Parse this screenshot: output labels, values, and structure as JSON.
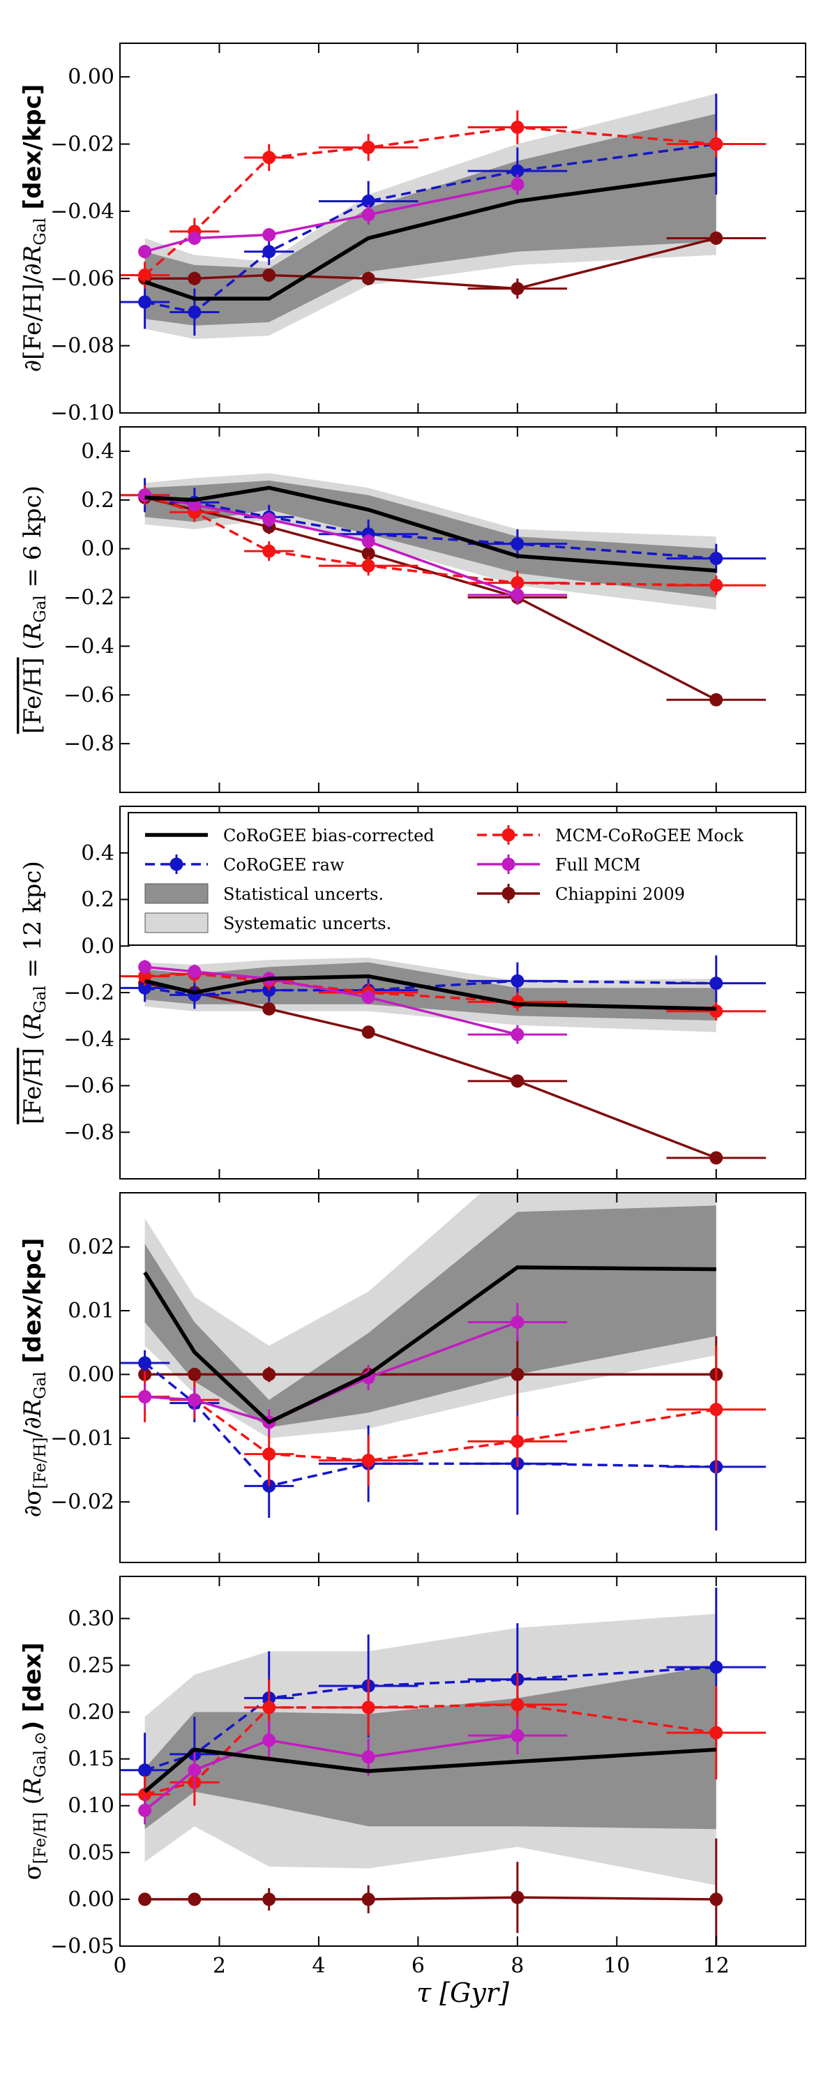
{
  "colors": {
    "corrected": "#000000",
    "raw": "#1515c8",
    "mock": "#f41414",
    "mcm": "#c21bc2",
    "chiappini": "#7f0c0c",
    "stat_band": "#8f8f8f",
    "sys_band": "#d8d8d8"
  },
  "legend": {
    "corrected": "CoRoGEE bias-corrected",
    "raw": "CoRoGEE raw",
    "stat": "Statistical uncerts.",
    "sys": "Systematic uncerts.",
    "mock": "MCM-CoRoGEE Mock",
    "mcm": "Full MCM",
    "chiappini": "Chiappini 2009"
  },
  "xaxis": {
    "label": "τ [Gyr]",
    "range": [
      0,
      13.8
    ],
    "ticks": [
      0,
      2,
      4,
      6,
      8,
      10,
      12
    ],
    "tick_labels": [
      "0",
      "2",
      "4",
      "6",
      "8",
      "10",
      "12"
    ]
  },
  "chart_data": [
    {
      "type": "line",
      "panel": 1,
      "ylabel": "∂[Fe/H]/∂R_Gal [dex/kpc]",
      "ylim": [
        -0.1,
        0.01
      ],
      "yticks": [
        -0.1,
        -0.08,
        -0.06,
        -0.04,
        -0.02,
        0.0
      ],
      "ytick_labels": [
        "−0.10",
        "−0.08",
        "−0.06",
        "−0.04",
        "−0.02",
        "0.00"
      ],
      "x": [
        0.5,
        1.5,
        3,
        5,
        8,
        12
      ],
      "corrected": [
        -0.061,
        -0.066,
        -0.066,
        -0.048,
        -0.037,
        -0.029
      ],
      "stat_lo": [
        -0.072,
        -0.074,
        -0.073,
        -0.058,
        -0.052,
        -0.049
      ],
      "stat_hi": [
        -0.052,
        -0.056,
        -0.057,
        -0.039,
        -0.025,
        -0.011
      ],
      "sys_lo": [
        -0.075,
        -0.078,
        -0.077,
        -0.062,
        -0.056,
        -0.053
      ],
      "sys_hi": [
        -0.048,
        -0.053,
        -0.055,
        -0.035,
        -0.02,
        -0.005
      ],
      "raw": {
        "y": [
          -0.067,
          -0.07,
          -0.052,
          -0.037,
          -0.028,
          -0.02
        ],
        "yerr": [
          0.008,
          0.007,
          0.004,
          0.006,
          0.007,
          0.015
        ],
        "xerr": [
          0.5,
          0.5,
          0.5,
          1,
          1,
          1
        ]
      },
      "mock": {
        "y": [
          -0.059,
          -0.046,
          -0.024,
          -0.021,
          -0.015,
          -0.02
        ],
        "yerr": [
          0.004,
          0.004,
          0.004,
          0.004,
          0.005,
          0.004
        ],
        "xerr": [
          0.5,
          0.5,
          0.5,
          1,
          1,
          1
        ]
      },
      "mcm": {
        "y": [
          -0.052,
          -0.048,
          -0.047,
          -0.041,
          -0.032,
          null
        ],
        "yerr": [
          0.002,
          0.002,
          0.002,
          0.003,
          0.003,
          0
        ],
        "xerr": [
          0,
          0,
          0,
          0,
          0,
          0
        ]
      },
      "chiappini": {
        "y": [
          -0.06,
          -0.06,
          -0.059,
          -0.06,
          -0.063,
          -0.048
        ],
        "yerr": [
          0.002,
          0.002,
          0.002,
          0.002,
          0.003,
          0.002
        ],
        "xerr": [
          0,
          0,
          0,
          0,
          1,
          1
        ]
      }
    },
    {
      "type": "line",
      "panel": 2,
      "ylabel": "[Fe/H] (R_Gal = 6 kpc)",
      "ylim": [
        -1.0,
        0.5
      ],
      "yticks": [
        -0.8,
        -0.6,
        -0.4,
        -0.2,
        0.0,
        0.2,
        0.4
      ],
      "ytick_labels": [
        "−0.8",
        "−0.6",
        "−0.4",
        "−0.2",
        "0.0",
        "0.2",
        "0.4"
      ],
      "x": [
        0.5,
        1.5,
        3,
        5,
        8,
        12
      ],
      "corrected": [
        0.21,
        0.2,
        0.25,
        0.16,
        -0.03,
        -0.09
      ],
      "stat_lo": [
        0.13,
        0.11,
        0.16,
        0.06,
        -0.1,
        -0.2
      ],
      "stat_hi": [
        0.25,
        0.26,
        0.28,
        0.22,
        0.05,
        0.0
      ],
      "sys_lo": [
        0.1,
        0.08,
        0.12,
        0.02,
        -0.15,
        -0.25
      ],
      "sys_hi": [
        0.27,
        0.29,
        0.31,
        0.25,
        0.08,
        0.05
      ],
      "raw": {
        "y": [
          0.22,
          0.19,
          0.13,
          0.06,
          0.02,
          -0.04
        ],
        "yerr": [
          0.07,
          0.06,
          0.05,
          0.06,
          0.06,
          0.06
        ],
        "xerr": [
          0.5,
          0.5,
          0.5,
          1,
          1,
          1
        ]
      },
      "mock": {
        "y": [
          0.22,
          0.15,
          -0.01,
          -0.07,
          -0.14,
          -0.15
        ],
        "yerr": [
          0.04,
          0.04,
          0.04,
          0.04,
          0.05,
          0.04
        ],
        "xerr": [
          0.5,
          0.5,
          0.5,
          1,
          1,
          1
        ]
      },
      "mcm": {
        "y": [
          0.22,
          0.18,
          0.12,
          0.03,
          -0.19,
          null
        ],
        "yerr": [
          0.02,
          0.02,
          0.03,
          0.03,
          0.04,
          0
        ],
        "xerr": [
          0,
          0,
          0,
          0,
          1,
          0
        ]
      },
      "chiappini": {
        "y": [
          0.21,
          0.16,
          0.09,
          -0.02,
          -0.2,
          -0.62
        ],
        "yerr": [
          0.03,
          0.03,
          0.03,
          0.03,
          0.03,
          0.02
        ],
        "xerr": [
          0,
          0,
          0,
          0,
          1,
          1
        ]
      }
    },
    {
      "type": "line",
      "panel": 3,
      "ylabel": "[Fe/H] (R_Gal = 12 kpc)",
      "ylim": [
        -1.0,
        0.6
      ],
      "yticks": [
        -0.8,
        -0.6,
        -0.4,
        -0.2,
        0.0,
        0.2,
        0.4
      ],
      "ytick_labels": [
        "−0.8",
        "−0.6",
        "−0.4",
        "−0.2",
        "0.0",
        "0.2",
        "0.4"
      ],
      "legend_location": "top",
      "x": [
        0.5,
        1.5,
        3,
        5,
        8,
        12
      ],
      "corrected": [
        -0.15,
        -0.2,
        -0.14,
        -0.13,
        -0.25,
        -0.27
      ],
      "stat_lo": [
        -0.23,
        -0.25,
        -0.25,
        -0.25,
        -0.3,
        -0.32
      ],
      "stat_hi": [
        -0.1,
        -0.12,
        -0.09,
        -0.07,
        -0.18,
        -0.18
      ],
      "sys_lo": [
        -0.26,
        -0.28,
        -0.28,
        -0.28,
        -0.34,
        -0.37
      ],
      "sys_hi": [
        -0.07,
        -0.08,
        -0.06,
        -0.05,
        -0.15,
        -0.14
      ],
      "raw": {
        "y": [
          -0.18,
          -0.21,
          -0.19,
          -0.19,
          -0.15,
          -0.16
        ],
        "yerr": [
          0.06,
          0.06,
          0.05,
          0.05,
          0.08,
          0.12
        ],
        "xerr": [
          0.5,
          0.5,
          0.5,
          1,
          1,
          1
        ]
      },
      "mock": {
        "y": [
          -0.13,
          -0.12,
          -0.15,
          -0.2,
          -0.24,
          -0.28
        ],
        "yerr": [
          0.04,
          0.04,
          0.04,
          0.04,
          0.04,
          0.04
        ],
        "xerr": [
          0.5,
          0.5,
          0.5,
          1,
          1,
          1
        ]
      },
      "mcm": {
        "y": [
          -0.09,
          -0.11,
          -0.14,
          -0.22,
          -0.38,
          null
        ],
        "yerr": [
          0.03,
          0.03,
          0.03,
          0.03,
          0.04,
          0
        ],
        "xerr": [
          0,
          0,
          0,
          0,
          1,
          0
        ]
      },
      "chiappini": {
        "y": [
          -0.16,
          -0.2,
          -0.27,
          -0.37,
          -0.58,
          -0.91
        ],
        "yerr": [
          0.02,
          0.02,
          0.02,
          0.02,
          0.02,
          0.02
        ],
        "xerr": [
          0,
          0,
          0,
          0,
          1,
          1
        ]
      }
    },
    {
      "type": "line",
      "panel": 4,
      "ylabel": "∂σ[Fe/H]/∂R_Gal [dex/kpc]",
      "ylim": [
        -0.0295,
        0.0285
      ],
      "yticks": [
        -0.02,
        -0.01,
        0.0,
        0.01,
        0.02
      ],
      "ytick_labels": [
        "−0.02",
        "−0.01",
        "0.00",
        "0.01",
        "0.02"
      ],
      "x": [
        0.5,
        1.5,
        3,
        5,
        8,
        12
      ],
      "corrected": [
        0.016,
        0.0035,
        -0.0075,
        0.0,
        0.0168,
        0.0165
      ],
      "stat_lo": [
        0.0082,
        -0.0011,
        -0.0083,
        -0.006,
        0.0,
        0.006
      ],
      "stat_hi": [
        0.0205,
        0.0082,
        -0.004,
        0.0065,
        0.0255,
        0.0265
      ],
      "sys_lo": [
        0.0045,
        -0.003,
        -0.01,
        -0.0085,
        -0.003,
        0.003
      ],
      "sys_hi": [
        0.0245,
        0.0122,
        0.0045,
        0.013,
        0.0335,
        0.035
      ],
      "raw": {
        "y": [
          0.0018,
          -0.0045,
          -0.0175,
          -0.014,
          -0.014,
          -0.0145
        ],
        "yerr": [
          0.002,
          0.003,
          0.005,
          0.006,
          0.008,
          0.01
        ],
        "xerr": [
          0.5,
          0.5,
          0.5,
          1,
          1,
          1
        ]
      },
      "mock": {
        "y": [
          -0.0035,
          -0.004,
          -0.0125,
          -0.0135,
          -0.0105,
          -0.0055
        ],
        "yerr": [
          0.004,
          0.003,
          0.005,
          0.004,
          0.004,
          0.01
        ],
        "xerr": [
          0.5,
          0.5,
          0.5,
          1,
          1,
          1
        ]
      },
      "mcm": {
        "y": [
          -0.0035,
          -0.004,
          -0.0075,
          -0.0005,
          0.0082,
          null
        ],
        "yerr": [
          0.002,
          0.002,
          0.002,
          0.002,
          0.003,
          0
        ],
        "xerr": [
          0,
          0,
          0,
          0,
          1,
          0
        ]
      },
      "chiappini": {
        "y": [
          0.0,
          0.0,
          0.0,
          0.0,
          0.0,
          0.0
        ],
        "yerr": [
          0.0003,
          0.0003,
          0.0012,
          0.0014,
          0.006,
          0.006
        ],
        "xerr": [
          0,
          0,
          0,
          0,
          0,
          0
        ]
      }
    },
    {
      "type": "line",
      "panel": 5,
      "ylabel": "σ[Fe/H] (R_Gal,⊙) [dex]",
      "ylim": [
        -0.05,
        0.345
      ],
      "yticks": [
        -0.05,
        0.0,
        0.05,
        0.1,
        0.15,
        0.2,
        0.25,
        0.3
      ],
      "ytick_labels": [
        "−0.05",
        "0.00",
        "0.05",
        "0.10",
        "0.15",
        "0.20",
        "0.25",
        "0.30"
      ],
      "x": [
        0.5,
        1.5,
        3,
        5,
        8,
        12
      ],
      "corrected": [
        0.115,
        0.16,
        0.15,
        0.137,
        0.147,
        0.16
      ],
      "stat_lo": [
        0.075,
        0.115,
        0.1,
        0.078,
        0.078,
        0.075
      ],
      "stat_hi": [
        0.14,
        0.2,
        0.2,
        0.198,
        0.215,
        0.25
      ],
      "sys_lo": [
        0.04,
        0.078,
        0.035,
        0.033,
        0.056,
        0.015
      ],
      "sys_hi": [
        0.195,
        0.24,
        0.265,
        0.265,
        0.29,
        0.305
      ],
      "raw": {
        "y": [
          0.138,
          0.155,
          0.215,
          0.228,
          0.235,
          0.248
        ],
        "yerr": [
          0.04,
          0.04,
          0.05,
          0.055,
          0.06,
          0.085
        ],
        "xerr": [
          0.5,
          0.5,
          0.5,
          1,
          1,
          1
        ]
      },
      "mock": {
        "y": [
          0.112,
          0.125,
          0.205,
          0.205,
          0.208,
          0.178
        ],
        "yerr": [
          0.02,
          0.025,
          0.03,
          0.03,
          0.035,
          0.05
        ],
        "xerr": [
          0.5,
          0.5,
          0.5,
          1,
          1,
          1
        ]
      },
      "mcm": {
        "y": [
          0.095,
          0.138,
          0.17,
          0.152,
          0.175,
          null
        ],
        "yerr": [
          0.015,
          0.02,
          0.02,
          0.02,
          0.02,
          0
        ],
        "xerr": [
          0,
          0,
          0,
          0,
          1,
          0
        ]
      },
      "chiappini": {
        "y": [
          0.0,
          0.0,
          0.0,
          0.0,
          0.002,
          0.0
        ],
        "yerr": [
          0.003,
          0.003,
          0.012,
          0.015,
          0.038,
          0.065
        ],
        "xerr": [
          0,
          0,
          0,
          0,
          0,
          0
        ]
      }
    }
  ]
}
